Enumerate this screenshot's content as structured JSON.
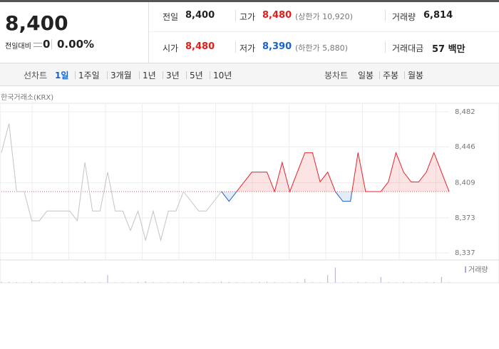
{
  "quote": {
    "price": "8,400",
    "change_label": "전일대비",
    "change": "0",
    "change_rate": "0.00%"
  },
  "stats": [
    {
      "label": "전일",
      "value": "8,400",
      "color": "#222222"
    },
    {
      "label": "고가",
      "value": "8,480",
      "note": "(상한가 10,920)",
      "color": "#e0201c"
    },
    {
      "label": "거래량",
      "value": "6,814",
      "color": "#222222"
    },
    {
      "label": "시가",
      "value": "8,480",
      "color": "#e0201c"
    },
    {
      "label": "저가",
      "value": "8,390",
      "note": "(하한가 5,880)",
      "color": "#1a63c6"
    },
    {
      "label": "거래대금",
      "value": "57 백만",
      "color": "#222222"
    }
  ],
  "tabs": {
    "line_label": "선차트",
    "line": [
      "1일",
      "1주일",
      "3개월",
      "1년",
      "3년",
      "5년",
      "10년"
    ],
    "selected": 0,
    "candle_label": "봉차트",
    "candle": [
      "일봉",
      "주봉",
      "월봉"
    ]
  },
  "chart_data": {
    "type": "line",
    "source": "한국거래소(KRX)",
    "categories": [
      null,
      null,
      null,
      null,
      null,
      null,
      null,
      null,
      null,
      null,
      null,
      null,
      null,
      null,
      null,
      null,
      null,
      null,
      null,
      null,
      null,
      null,
      null,
      null,
      null,
      null,
      null,
      null,
      null,
      null,
      null,
      null,
      null,
      null,
      null,
      null,
      null,
      null,
      null,
      null,
      null,
      null,
      null,
      null,
      null,
      null,
      null,
      null,
      null,
      null,
      null,
      null,
      null,
      null,
      null,
      null,
      null,
      null,
      null,
      null
    ],
    "baseline": 8400,
    "up_color": "#e3242b",
    "down_color": "#1a63c6",
    "series": [
      {
        "color": "#c4c4c4",
        "values": [
          8440,
          8470,
          8400,
          8400,
          8370,
          8370,
          8380,
          8380,
          8380,
          8380,
          8370,
          8430,
          8380,
          8380,
          8420,
          8380,
          8380,
          8360,
          8380,
          8350,
          8380,
          8350,
          8380,
          8380,
          8400,
          8390,
          8380,
          8380,
          8390,
          8400,
          null,
          null,
          null,
          null,
          null,
          null,
          null,
          null,
          null,
          null,
          null,
          null,
          null,
          null,
          null,
          null,
          null,
          null,
          null,
          null,
          null,
          null,
          null,
          null,
          null,
          null,
          null,
          null,
          null,
          null
        ]
      },
      {
        "color": "#e3242b",
        "values": [
          null,
          null,
          null,
          null,
          null,
          null,
          null,
          null,
          null,
          null,
          null,
          null,
          null,
          null,
          null,
          null,
          null,
          null,
          null,
          null,
          null,
          null,
          null,
          null,
          null,
          null,
          null,
          null,
          null,
          8400,
          8390,
          8400,
          8410,
          8420,
          8420,
          8420,
          8400,
          8430,
          8400,
          8420,
          8440,
          8440,
          8410,
          8420,
          8400,
          8390,
          8390,
          8440,
          8400,
          8400,
          8400,
          8410,
          8440,
          8420,
          8410,
          8410,
          8420,
          8440,
          8420,
          8400
        ]
      },
      {
        "name": "거래량",
        "axis": "volume",
        "color": "#b6a6d6",
        "values": [
          5,
          4,
          3,
          2,
          6,
          3,
          2,
          3,
          4,
          2,
          3,
          6,
          2,
          3,
          40,
          2,
          3,
          2,
          4,
          8,
          3,
          2,
          3,
          2,
          5,
          3,
          4,
          2,
          3,
          6,
          4,
          3,
          2,
          3,
          4,
          5,
          3,
          2,
          3,
          4,
          20,
          3,
          2,
          40,
          80,
          3,
          2,
          4,
          3,
          2,
          30,
          3,
          2,
          4,
          3,
          2,
          3,
          4,
          30,
          3
        ]
      }
    ],
    "ylim": [
      8337,
      8482
    ],
    "yticks": [
      {
        "value": 8482,
        "label": "8,482"
      },
      {
        "value": 8446,
        "label": "8,446"
      },
      {
        "value": 8409,
        "label": "8,409"
      },
      {
        "value": 8373,
        "label": "8,373"
      },
      {
        "value": 8337,
        "label": "8,337"
      }
    ],
    "volume_lim": [
      0,
      100
    ],
    "grid": true
  }
}
